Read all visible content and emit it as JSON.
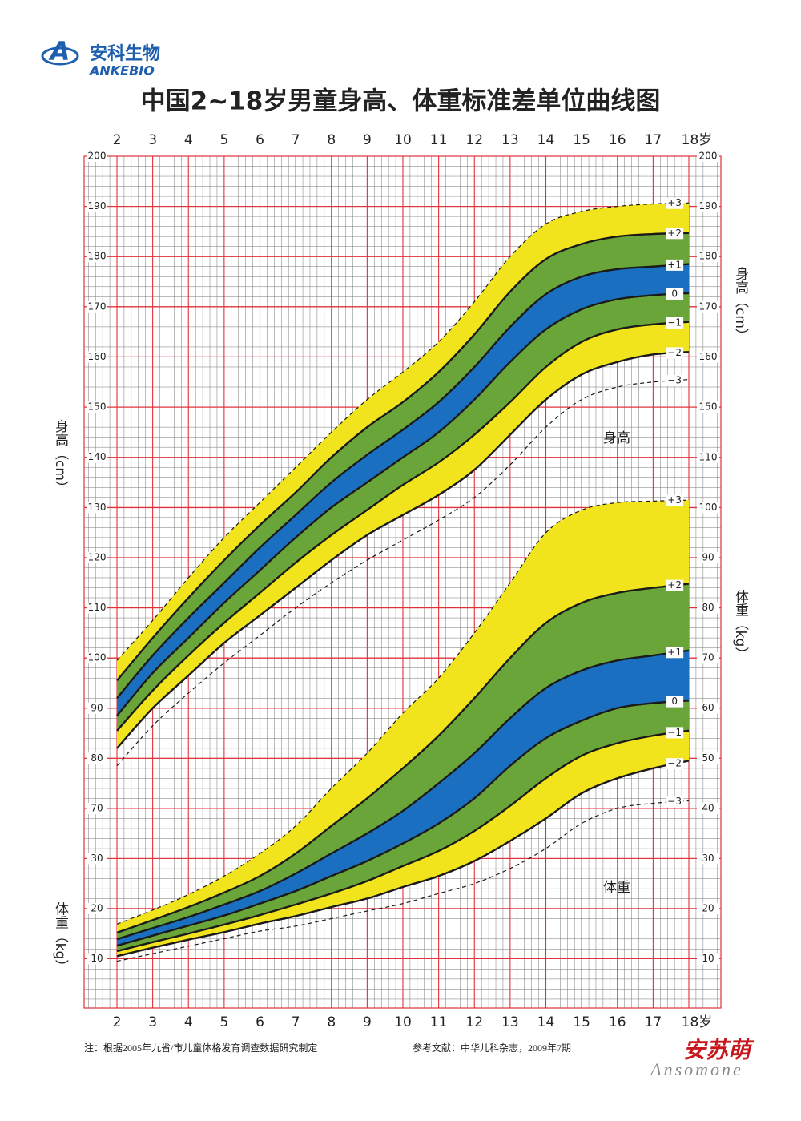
{
  "header": {
    "brand_cn": "安科生物",
    "brand_en": "ANKEBIO",
    "title": "中国2~18岁男童身高、体重标准差单位曲线图"
  },
  "chart_data": [
    {
      "type": "line",
      "label": "身高",
      "y_label": "身高（cm）",
      "x": [
        2,
        3,
        4,
        5,
        6,
        7,
        8,
        9,
        10,
        11,
        12,
        13,
        14,
        15,
        16,
        17,
        18
      ],
      "xlim": [
        2,
        18
      ],
      "xticks": [
        2,
        3,
        4,
        5,
        6,
        7,
        8,
        9,
        10,
        11,
        12,
        13,
        14,
        15,
        16,
        17,
        {
          "value": 18,
          "label": "18岁"
        }
      ],
      "ylim": [
        70,
        200
      ],
      "yticks": [
        70,
        80,
        90,
        100,
        110,
        120,
        130,
        140,
        150,
        160,
        170,
        180,
        190,
        200
      ],
      "y2lim": [
        70,
        200
      ],
      "y2ticks": [
        150,
        160,
        170,
        180,
        190,
        200
      ],
      "fill_colors": [
        "#f2e41c",
        "#6aa539",
        "#1b6fc0",
        "#6aa539",
        "#f2e41c"
      ],
      "series": [
        {
          "name": "+3",
          "color": "#1a1a1a",
          "dashed": true,
          "values": [
            99.5,
            107.5,
            116,
            124,
            131,
            138,
            145,
            151.5,
            157,
            163,
            171,
            180,
            186.5,
            189,
            190,
            190.5,
            190.7
          ]
        },
        {
          "name": "+2",
          "color": "#1a1a1a",
          "dashed": false,
          "values": [
            95.5,
            104,
            112,
            119.5,
            126.5,
            133,
            140,
            146,
            151,
            157,
            164.5,
            173,
            179.5,
            182.5,
            184,
            184.5,
            184.7
          ]
        },
        {
          "name": "+1",
          "color": "#1a1a1a",
          "dashed": false,
          "values": [
            92,
            100.5,
            108,
            115,
            122,
            128.5,
            135,
            140.5,
            145.5,
            151,
            158,
            166,
            172.5,
            176,
            177.5,
            178,
            178.5
          ]
        },
        {
          "name": "0",
          "color": "#1a1a1a",
          "dashed": false,
          "values": [
            88.5,
            97,
            104,
            111,
            117.5,
            124,
            130,
            135,
            140,
            145,
            151.5,
            159,
            165.5,
            169.5,
            171.5,
            172.3,
            172.7
          ]
        },
        {
          "name": "−1",
          "color": "#1a1a1a",
          "dashed": false,
          "values": [
            85.5,
            93.5,
            100.5,
            107,
            113,
            119,
            124.5,
            129.5,
            134.5,
            139,
            144.5,
            151,
            158,
            163,
            165.5,
            166.5,
            167
          ]
        },
        {
          "name": "−2",
          "color": "#1a1a1a",
          "dashed": false,
          "values": [
            82,
            90,
            96.5,
            103,
            108.5,
            114,
            119.5,
            124.5,
            128.5,
            132.5,
            137.5,
            144.5,
            151.5,
            156.5,
            159,
            160.5,
            161
          ]
        },
        {
          "name": "−3",
          "color": "#1a1a1a",
          "dashed": true,
          "values": [
            78.5,
            86.5,
            93,
            99,
            104.5,
            110,
            115,
            119.5,
            123.5,
            127.5,
            132,
            138.5,
            146,
            151.5,
            154,
            155,
            155.5
          ]
        }
      ]
    },
    {
      "type": "line",
      "label": "体重",
      "y_label": "体重（kg）",
      "x": [
        2,
        3,
        4,
        5,
        6,
        7,
        8,
        9,
        10,
        11,
        12,
        13,
        14,
        15,
        16,
        17,
        18
      ],
      "xlim": [
        2,
        18
      ],
      "xticks": [
        2,
        3,
        4,
        5,
        6,
        7,
        8,
        9,
        10,
        11,
        12,
        13,
        14,
        15,
        16,
        17,
        {
          "value": 18,
          "label": "18岁"
        }
      ],
      "ylim": [
        0,
        110
      ],
      "yticks": [
        10,
        20,
        30
      ],
      "y2lim": [
        0,
        110
      ],
      "y2ticks": [
        10,
        20,
        30,
        40,
        50,
        60,
        70,
        80,
        90,
        100,
        110
      ],
      "fill_colors": [
        "#f2e41c",
        "#6aa539",
        "#1b6fc0",
        "#6aa539",
        "#f2e41c"
      ],
      "series": [
        {
          "name": "+3",
          "color": "#1a1a1a",
          "dashed": true,
          "values": [
            16.9,
            19.7,
            22.8,
            26.5,
            31,
            36.5,
            44,
            51,
            59,
            66,
            75,
            85,
            95,
            99.5,
            101,
            101.3,
            101.5
          ]
        },
        {
          "name": "+2",
          "color": "#1a1a1a",
          "dashed": false,
          "values": [
            15.2,
            17.7,
            20.3,
            23.2,
            26.5,
            31,
            36.5,
            42,
            48,
            54.5,
            62,
            70,
            77,
            81,
            83,
            84,
            84.8
          ]
        },
        {
          "name": "+1",
          "color": "#1a1a1a",
          "dashed": false,
          "values": [
            13.9,
            16.1,
            18.3,
            20.8,
            23.5,
            27,
            31,
            35,
            39.5,
            45,
            51,
            58,
            64,
            67.5,
            69.5,
            70.5,
            71.5
          ]
        },
        {
          "name": "0",
          "color": "#1a1a1a",
          "dashed": false,
          "values": [
            12.6,
            14.6,
            16.6,
            18.6,
            21,
            23.5,
            26.5,
            29.5,
            33,
            37,
            42,
            48.5,
            54,
            57.5,
            60,
            61,
            61.5
          ]
        },
        {
          "name": "−1",
          "color": "#1a1a1a",
          "dashed": false,
          "values": [
            11.5,
            13.3,
            15,
            16.8,
            18.7,
            20.8,
            23,
            25.5,
            28.5,
            31.5,
            35.5,
            40.5,
            46,
            50.5,
            53,
            54.5,
            55.5
          ]
        },
        {
          "name": "−2",
          "color": "#1a1a1a",
          "dashed": false,
          "values": [
            10.5,
            12.2,
            13.8,
            15.3,
            17,
            18.5,
            20.3,
            22,
            24.3,
            26.5,
            29.5,
            33.5,
            38,
            43,
            46,
            48,
            49.5
          ]
        },
        {
          "name": "−3",
          "color": "#1a1a1a",
          "dashed": true,
          "values": [
            9.5,
            11,
            12.5,
            14,
            15.5,
            16.5,
            18,
            19.5,
            21,
            23,
            25,
            28,
            32,
            37,
            40,
            41,
            41.5
          ]
        }
      ]
    }
  ],
  "footer": {
    "note": "注：根据2005年九省/市儿童体格发育调查数据研究制定",
    "reference": "参考文献：中华儿科杂志，2009年7期",
    "logo_cn": "安苏萌",
    "logo_en": "Ansomone"
  }
}
